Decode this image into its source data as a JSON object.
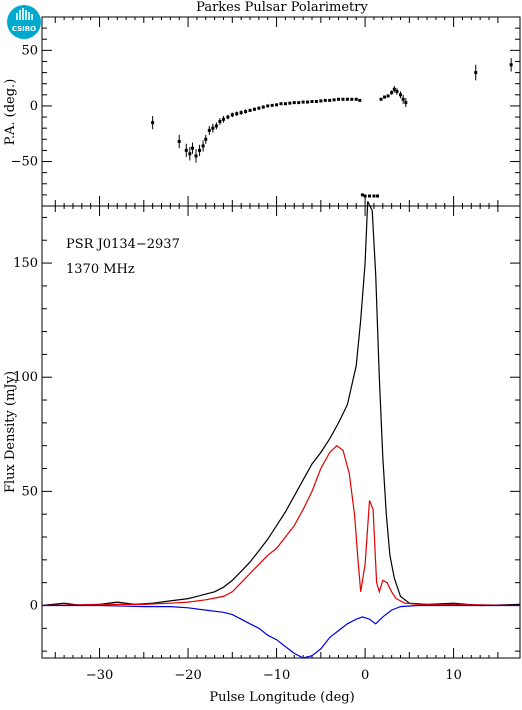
{
  "logo": {
    "text": "CSIRO",
    "color": "#00a9ce"
  },
  "chart_data": [
    {
      "type": "scatter",
      "panel": "position-angle",
      "title": "Parkes Pulsar Polarimetry",
      "xlabel": "",
      "ylabel": "P.A. (deg.)",
      "xlim": [
        -36.5,
        17.5
      ],
      "ylim": [
        -90,
        80
      ],
      "yticks": [
        -50,
        0,
        50
      ],
      "points": [
        [
          -24,
          -15,
          6
        ],
        [
          -21,
          -32,
          6
        ],
        [
          -20.2,
          -40,
          6
        ],
        [
          -19.8,
          -43,
          6
        ],
        [
          -19.5,
          -38,
          5
        ],
        [
          -19.1,
          -45,
          6
        ],
        [
          -18.7,
          -40,
          5
        ],
        [
          -18.3,
          -36,
          5
        ],
        [
          -18,
          -30,
          4
        ],
        [
          -17.6,
          -22,
          4
        ],
        [
          -17.2,
          -20,
          4
        ],
        [
          -16.8,
          -18,
          3
        ],
        [
          -16.4,
          -14,
          3
        ],
        [
          -16,
          -12,
          3
        ],
        [
          -15.5,
          -10,
          2
        ],
        [
          -15,
          -8,
          2
        ],
        [
          -14.5,
          -7,
          2
        ],
        [
          -14,
          -6,
          2
        ],
        [
          -13.5,
          -5,
          2
        ],
        [
          -13,
          -4,
          1.5
        ],
        [
          -12.5,
          -3,
          1.5
        ],
        [
          -12,
          -2,
          1.5
        ],
        [
          -11.5,
          -1,
          1.5
        ],
        [
          -11,
          0,
          1
        ],
        [
          -10.5,
          0.5,
          1
        ],
        [
          -10,
          1,
          1
        ],
        [
          -9.5,
          2,
          1
        ],
        [
          -9,
          2,
          1
        ],
        [
          -8.5,
          2.5,
          1
        ],
        [
          -8,
          3,
          1
        ],
        [
          -7.5,
          3,
          1
        ],
        [
          -7,
          3.5,
          1
        ],
        [
          -6.5,
          3.5,
          1
        ],
        [
          -6,
          4,
          1
        ],
        [
          -5.5,
          4,
          1
        ],
        [
          -5,
          4.5,
          1
        ],
        [
          -4.5,
          5,
          1
        ],
        [
          -4,
          5,
          1
        ],
        [
          -3.5,
          5.5,
          1
        ],
        [
          -3,
          6,
          1
        ],
        [
          -2.5,
          6,
          1
        ],
        [
          -2,
          6,
          1
        ],
        [
          -1.5,
          6,
          1
        ],
        [
          -1,
          6,
          1
        ],
        [
          -0.6,
          5,
          1
        ],
        [
          -0.3,
          -80,
          1
        ],
        [
          0,
          -81,
          1
        ],
        [
          0.5,
          -81,
          1
        ],
        [
          1,
          -81,
          1
        ],
        [
          1.4,
          -81,
          1
        ],
        [
          1.8,
          6,
          1
        ],
        [
          2.2,
          8,
          1
        ],
        [
          2.6,
          9,
          1
        ],
        [
          3,
          12,
          2
        ],
        [
          3.3,
          15,
          3
        ],
        [
          3.6,
          13,
          3
        ],
        [
          4,
          10,
          3
        ],
        [
          4.3,
          6,
          4
        ],
        [
          4.6,
          3,
          4
        ],
        [
          12.5,
          30,
          7
        ],
        [
          16.5,
          37,
          6
        ]
      ]
    },
    {
      "type": "line",
      "panel": "flux-density",
      "xlabel": "Pulse Longitude (deg)",
      "ylabel": "Flux Density (mJy)",
      "xlim": [
        -36.5,
        17.5
      ],
      "ylim": [
        -23,
        175
      ],
      "xticks": [
        -30,
        -20,
        -10,
        0,
        10
      ],
      "yticks": [
        0,
        50,
        100,
        150
      ],
      "annotations": [
        "PSR J0134−2937",
        "1370 MHz"
      ],
      "series": [
        {
          "color": "#000000",
          "points": [
            [
              -36.5,
              0
            ],
            [
              -34,
              1
            ],
            [
              -32,
              0
            ],
            [
              -30,
              0.5
            ],
            [
              -28,
              1.5
            ],
            [
              -26,
              0.5
            ],
            [
              -24,
              1
            ],
            [
              -22,
              2
            ],
            [
              -20,
              3
            ],
            [
              -19,
              4
            ],
            [
              -18,
              5
            ],
            [
              -17,
              6
            ],
            [
              -16,
              8
            ],
            [
              -15,
              11
            ],
            [
              -14,
              15
            ],
            [
              -13,
              19
            ],
            [
              -12,
              24
            ],
            [
              -11,
              29
            ],
            [
              -10,
              35
            ],
            [
              -9,
              41
            ],
            [
              -8,
              48
            ],
            [
              -7,
              55
            ],
            [
              -6,
              62
            ],
            [
              -5,
              67
            ],
            [
              -4,
              73
            ],
            [
              -3,
              80
            ],
            [
              -2,
              88
            ],
            [
              -1,
              105
            ],
            [
              -0.5,
              125
            ],
            [
              0,
              150
            ],
            [
              0.3,
              177
            ],
            [
              0.8,
              173
            ],
            [
              1.2,
              145
            ],
            [
              1.6,
              100
            ],
            [
              2,
              65
            ],
            [
              2.4,
              40
            ],
            [
              2.8,
              22
            ],
            [
              3.3,
              12
            ],
            [
              4,
              4
            ],
            [
              5,
              1
            ],
            [
              7,
              0.5
            ],
            [
              10,
              1
            ],
            [
              13,
              0
            ],
            [
              17.5,
              0.5
            ]
          ]
        },
        {
          "color": "#e00000",
          "points": [
            [
              -36.5,
              0
            ],
            [
              -30,
              0.5
            ],
            [
              -25,
              0.5
            ],
            [
              -22,
              1
            ],
            [
              -20,
              1.5
            ],
            [
              -18,
              2.5
            ],
            [
              -16,
              4
            ],
            [
              -15,
              6
            ],
            [
              -14,
              10
            ],
            [
              -13,
              14
            ],
            [
              -12,
              18
            ],
            [
              -11,
              22
            ],
            [
              -10,
              25
            ],
            [
              -9,
              30
            ],
            [
              -8,
              35
            ],
            [
              -7,
              42
            ],
            [
              -6,
              50
            ],
            [
              -5,
              60
            ],
            [
              -4,
              67
            ],
            [
              -3.2,
              70
            ],
            [
              -2.5,
              68
            ],
            [
              -1.8,
              58
            ],
            [
              -1.2,
              40
            ],
            [
              -0.8,
              20
            ],
            [
              -0.5,
              6
            ],
            [
              0,
              18
            ],
            [
              0.5,
              46
            ],
            [
              0.9,
              42
            ],
            [
              1.3,
              10
            ],
            [
              1.6,
              6
            ],
            [
              2,
              11
            ],
            [
              2.5,
              10
            ],
            [
              3,
              6
            ],
            [
              3.5,
              3
            ],
            [
              4.5,
              1
            ],
            [
              6,
              0.5
            ],
            [
              10,
              0.5
            ],
            [
              17.5,
              0
            ]
          ]
        },
        {
          "color": "#0000e0",
          "points": [
            [
              -36.5,
              0
            ],
            [
              -30,
              0
            ],
            [
              -25,
              -0.5
            ],
            [
              -22,
              -0.5
            ],
            [
              -20,
              -1
            ],
            [
              -18,
              -2
            ],
            [
              -16,
              -3
            ],
            [
              -15,
              -4
            ],
            [
              -14,
              -6
            ],
            [
              -13,
              -8
            ],
            [
              -12,
              -10
            ],
            [
              -11,
              -13
            ],
            [
              -10,
              -15
            ],
            [
              -9,
              -18
            ],
            [
              -8,
              -21
            ],
            [
              -7,
              -23
            ],
            [
              -6,
              -22
            ],
            [
              -5,
              -19
            ],
            [
              -4,
              -14
            ],
            [
              -3,
              -11
            ],
            [
              -2,
              -8
            ],
            [
              -1,
              -6
            ],
            [
              -0.3,
              -5
            ],
            [
              0.5,
              -6
            ],
            [
              1.2,
              -8
            ],
            [
              2,
              -5
            ],
            [
              3,
              -2
            ],
            [
              4,
              -0.5
            ],
            [
              6,
              0
            ],
            [
              10,
              0
            ],
            [
              17.5,
              0
            ]
          ]
        }
      ]
    }
  ]
}
